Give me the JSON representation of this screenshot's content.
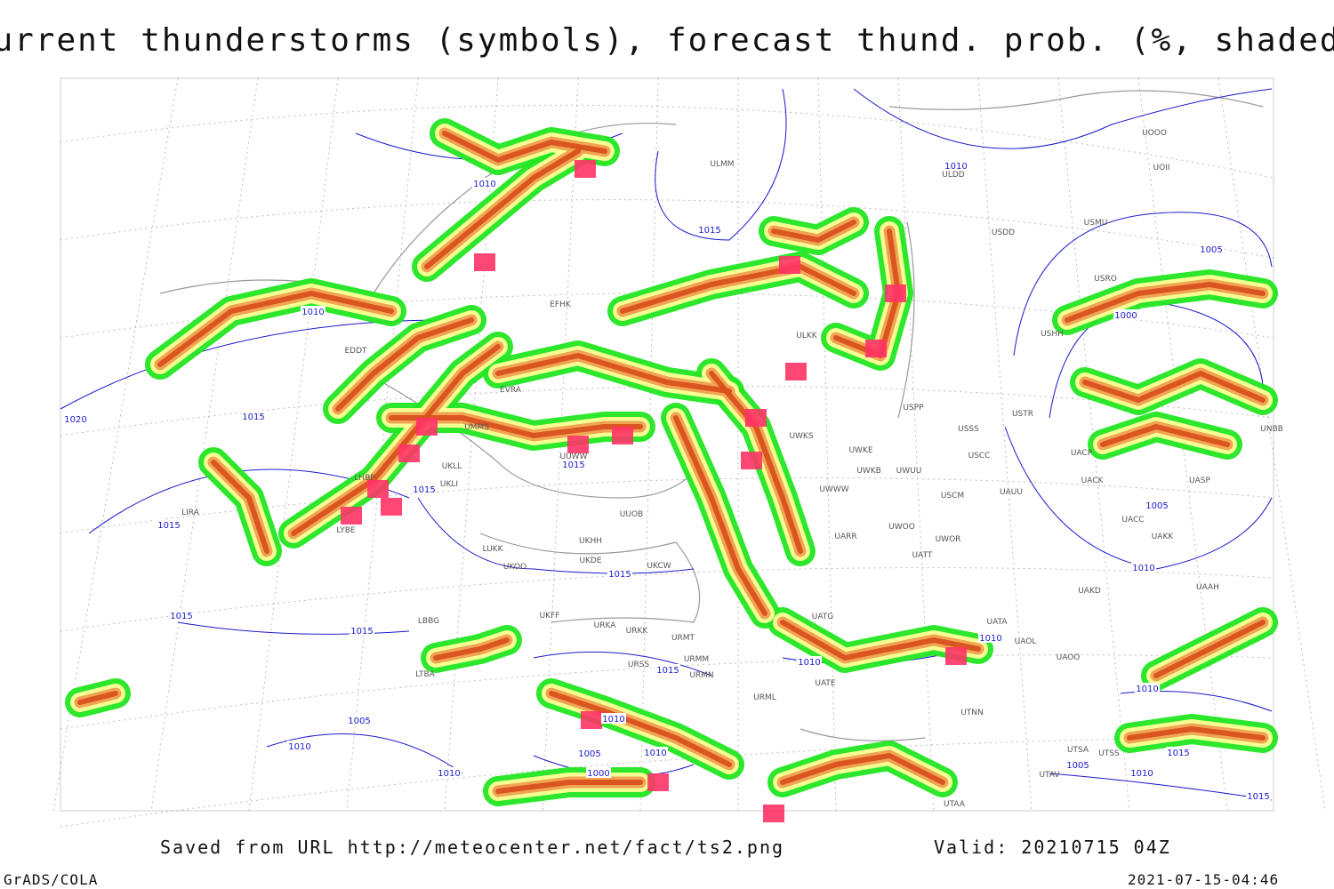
{
  "header": {
    "title": "Current thunderstorms (symbols), forecast thund. prob. (%, shaded)"
  },
  "footer": {
    "source": "Saved from URL http://meteocenter.net/fact/ts2.png",
    "valid": "Valid: 20210715 04Z",
    "software": "GrADS/COLA",
    "timestamp": "2021-07-15-04:46"
  },
  "map": {
    "stations": [
      "ULMM",
      "ULDD",
      "USDD",
      "USMU",
      "UOOO",
      "UOII",
      "USRO",
      "USHH",
      "USTR",
      "USSS",
      "USCC",
      "UACP",
      "UACK",
      "UASP",
      "UACC",
      "UAKK",
      "UNBB",
      "ULKK",
      "UWKS",
      "UWKE",
      "UWKB",
      "UWUU",
      "UWWW",
      "USPP",
      "USCM",
      "UAUU",
      "UARR",
      "UWOO",
      "UWOR",
      "UATT",
      "UATG",
      "UATA",
      "UAOL",
      "UAOO",
      "UAKD",
      "UAAH",
      "UATE",
      "URML",
      "UTNN",
      "UTSA",
      "UTSS",
      "UTAV",
      "UTAA",
      "LIRA",
      "LUKK",
      "UUOB",
      "UKHH",
      "UKDE",
      "UKOO",
      "UKCW",
      "UKFF",
      "URKA",
      "URKK",
      "URMT",
      "URSS",
      "URMM",
      "URMN",
      "LTBA",
      "LBBG",
      "EDDT",
      "EFHK",
      "EVRA",
      "UMMS",
      "UKLL",
      "UKLI",
      "LHBP",
      "LYBE",
      "UUWW"
    ],
    "isobar_labels": [
      "1010",
      "1015",
      "1010",
      "1005",
      "1000",
      "1010",
      "1015",
      "1020",
      "1015",
      "1015",
      "1015",
      "1015",
      "1015",
      "1015",
      "1015",
      "1010",
      "1010",
      "1010",
      "1005",
      "1010",
      "1005",
      "1010",
      "1000",
      "1005",
      "1010",
      "1010",
      "1010",
      "1005",
      "1010",
      "1015",
      "1015"
    ]
  }
}
